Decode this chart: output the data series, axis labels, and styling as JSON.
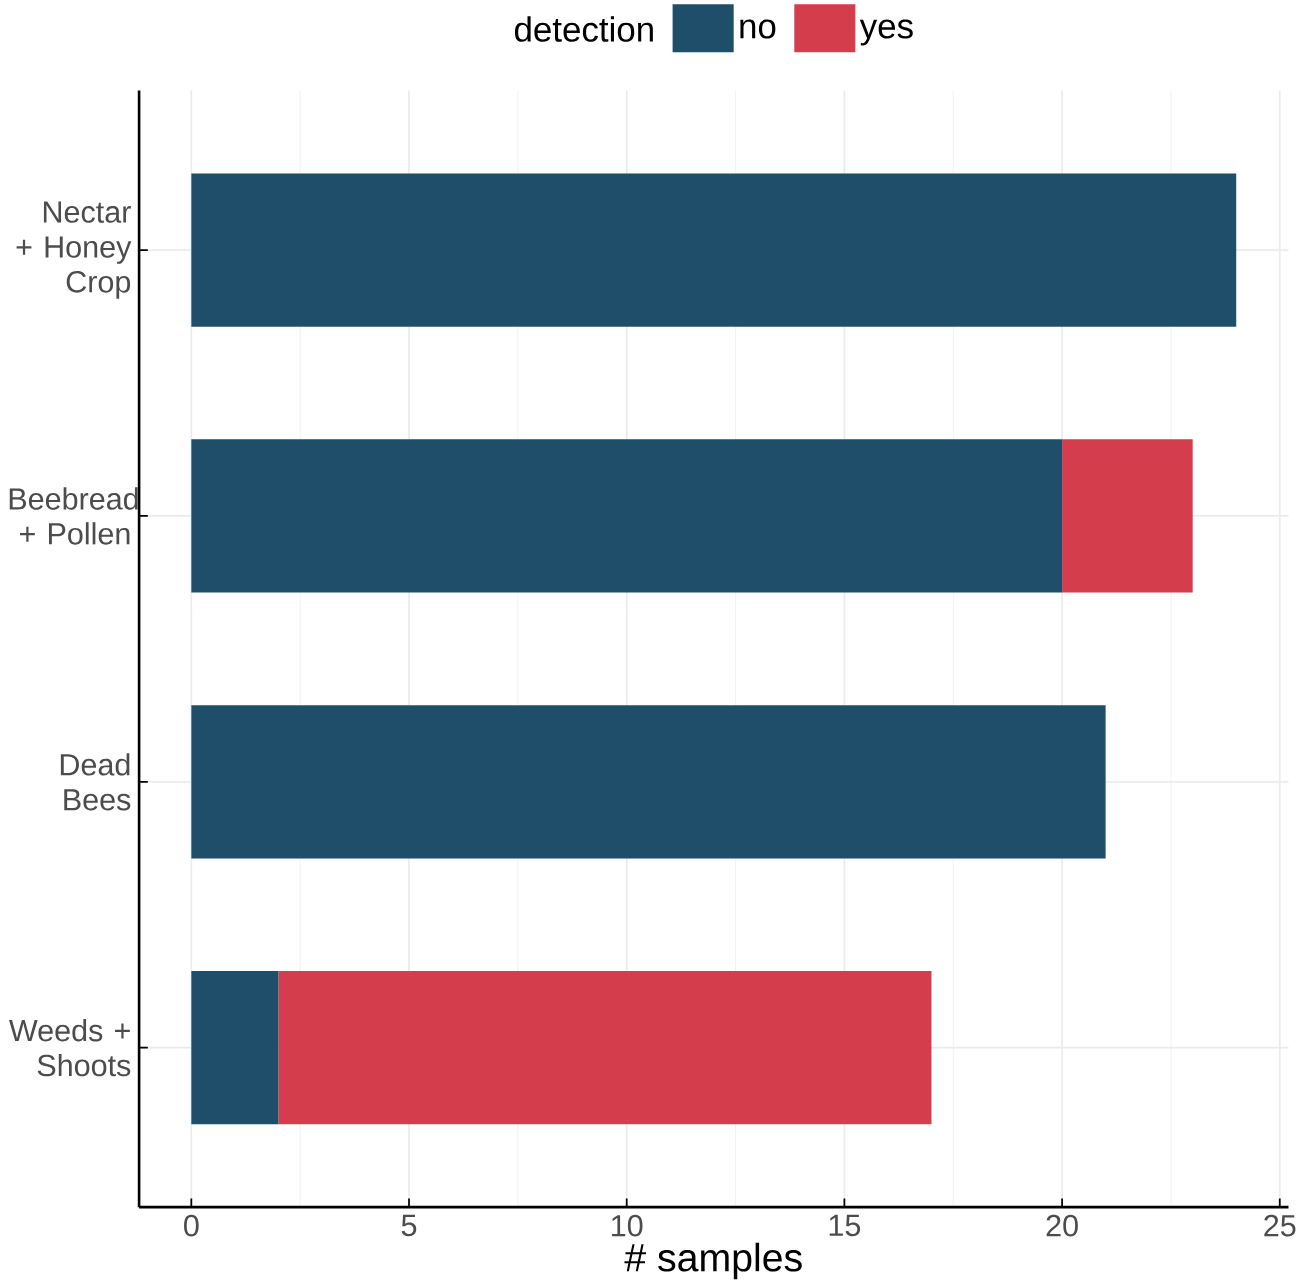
{
  "chart_data": {
    "type": "bar",
    "orientation": "horizontal",
    "stacked": true,
    "xlabel": "# samples",
    "legend_title": "detection",
    "legend": "top",
    "categories": [
      "Nectar + Honey Crop",
      "Beebread + Pollen",
      "Dead Bees",
      "Weeds + Shoots"
    ],
    "series": [
      {
        "name": "no",
        "color": "#1f4e6b",
        "values": [
          24,
          20,
          21,
          2
        ]
      },
      {
        "name": "yes",
        "color": "#d43d4b",
        "values": [
          0,
          3,
          0,
          15
        ]
      }
    ],
    "xlim": [
      -1.2,
      25.2
    ],
    "xticks": [
      0,
      5,
      10,
      15,
      20,
      25
    ],
    "grid": true
  }
}
